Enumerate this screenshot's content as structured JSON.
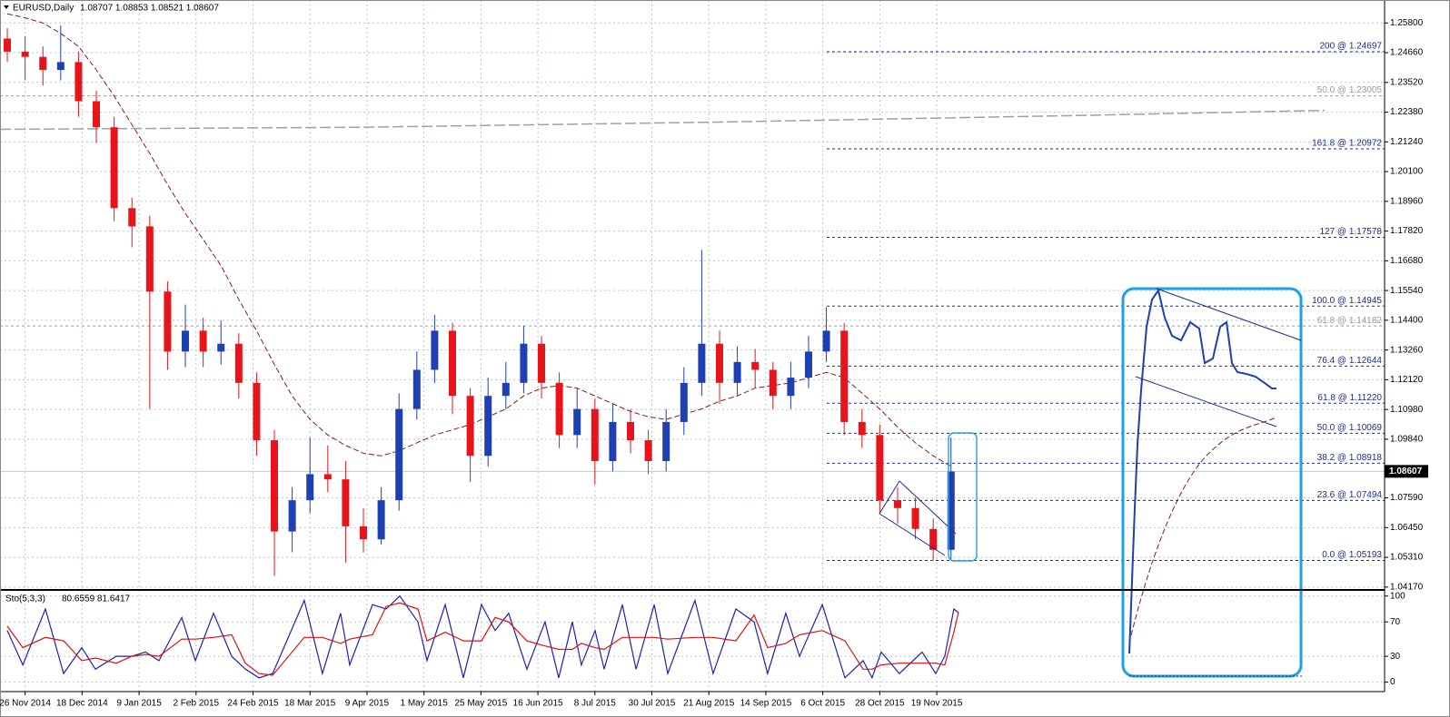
{
  "chart_data": [
    {
      "type": "candlestick",
      "title": "EURUSD,Daily",
      "subtitle": "1.08707 1.08853 1.08521 1.08607",
      "x": [
        0,
        1,
        2,
        3,
        4,
        5,
        6,
        7,
        8,
        9,
        10,
        11,
        12,
        13,
        14,
        15,
        16,
        17,
        18,
        19,
        20,
        21,
        22,
        23,
        24,
        25,
        26,
        27,
        28,
        29,
        30,
        31,
        32,
        33,
        34,
        35,
        36,
        37,
        38,
        39,
        40,
        41,
        42,
        43,
        44,
        45,
        46,
        47,
        48,
        49,
        50,
        51,
        52,
        53
      ],
      "open": [
        1.252,
        1.247,
        1.245,
        1.24,
        1.243,
        1.228,
        1.218,
        1.187,
        1.18,
        1.155,
        1.132,
        1.14,
        1.132,
        1.135,
        1.12,
        1.098,
        1.063,
        1.075,
        1.085,
        1.083,
        1.065,
        1.06,
        1.075,
        1.11,
        1.125,
        1.14,
        1.115,
        1.092,
        1.115,
        1.12,
        1.135,
        1.12,
        1.1,
        1.11,
        1.09,
        1.105,
        1.098,
        1.09,
        1.105,
        1.12,
        1.135,
        1.12,
        1.128,
        1.125,
        1.115,
        1.122,
        1.132,
        1.14,
        1.105,
        1.1,
        1.075,
        1.072,
        1.064,
        1.056
      ],
      "high": [
        1.256,
        1.253,
        1.249,
        1.257,
        1.247,
        1.232,
        1.222,
        1.191,
        1.184,
        1.159,
        1.15,
        1.145,
        1.144,
        1.139,
        1.124,
        1.102,
        1.08,
        1.099,
        1.096,
        1.09,
        1.072,
        1.08,
        1.116,
        1.132,
        1.146,
        1.143,
        1.118,
        1.122,
        1.128,
        1.142,
        1.138,
        1.124,
        1.118,
        1.114,
        1.112,
        1.11,
        1.102,
        1.11,
        1.126,
        1.171,
        1.14,
        1.134,
        1.133,
        1.128,
        1.128,
        1.138,
        1.149,
        1.143,
        1.11,
        1.104,
        1.08,
        1.076,
        1.068,
        1.099
      ],
      "low": [
        1.243,
        1.236,
        1.234,
        1.236,
        1.222,
        1.212,
        1.182,
        1.172,
        1.11,
        1.125,
        1.126,
        1.126,
        1.127,
        1.114,
        1.092,
        1.046,
        1.055,
        1.07,
        1.078,
        1.051,
        1.055,
        1.058,
        1.071,
        1.106,
        1.12,
        1.108,
        1.082,
        1.088,
        1.11,
        1.116,
        1.114,
        1.095,
        1.095,
        1.081,
        1.086,
        1.093,
        1.085,
        1.086,
        1.1,
        1.115,
        1.112,
        1.115,
        1.118,
        1.11,
        1.11,
        1.118,
        1.128,
        1.1,
        1.095,
        1.07,
        1.066,
        1.06,
        1.052,
        1.0524
      ],
      "close": [
        1.247,
        1.245,
        1.24,
        1.243,
        1.228,
        1.218,
        1.187,
        1.18,
        1.155,
        1.132,
        1.14,
        1.132,
        1.135,
        1.12,
        1.098,
        1.063,
        1.075,
        1.085,
        1.083,
        1.065,
        1.06,
        1.075,
        1.11,
        1.125,
        1.14,
        1.115,
        1.092,
        1.115,
        1.12,
        1.135,
        1.12,
        1.1,
        1.11,
        1.09,
        1.105,
        1.098,
        1.09,
        1.105,
        1.12,
        1.135,
        1.12,
        1.128,
        1.125,
        1.115,
        1.122,
        1.132,
        1.14,
        1.105,
        1.1,
        1.075,
        1.072,
        1.064,
        1.056,
        1.086
      ],
      "up_color": "#1f3fb4",
      "down_color": "#e8141b",
      "moving_average": {
        "color": "#8b1a1a",
        "values": [
          1.2615,
          1.26,
          1.258,
          1.254,
          1.249,
          1.24,
          1.23,
          1.219,
          1.208,
          1.196,
          1.185,
          1.175,
          1.165,
          1.152,
          1.14,
          1.127,
          1.115,
          1.106,
          1.1,
          1.096,
          1.093,
          1.092,
          1.094,
          1.097,
          1.1,
          1.102,
          1.104,
          1.107,
          1.11,
          1.115,
          1.118,
          1.119,
          1.118,
          1.115,
          1.112,
          1.109,
          1.107,
          1.106,
          1.108,
          1.11,
          1.113,
          1.115,
          1.118,
          1.119,
          1.12,
          1.122,
          1.124,
          1.122,
          1.116,
          1.11,
          1.103,
          1.097,
          1.092,
          1.088
        ]
      },
      "long_average": {
        "color": "#a0a0a0",
        "x": [
          -0.4,
          20,
          40,
          60,
          74
        ],
        "values": [
          1.2172,
          1.218,
          1.22,
          1.2225,
          1.2245
        ]
      },
      "fib_levels": [
        {
          "value": 1.24697,
          "label": "200 @ 1.24697"
        },
        {
          "value": 1.20972,
          "label": "161.8 @ 1.20972"
        },
        {
          "value": 1.17578,
          "label": "127 @ 1.17578"
        },
        {
          "value": 1.14945,
          "label": "100.0 @ 1.14945"
        },
        {
          "value": 1.12644,
          "label": "76.4 @ 1.12644"
        },
        {
          "value": 1.1122,
          "label": "61.8 @ 1.11220"
        },
        {
          "value": 1.10069,
          "label": "50.0 @ 1.10069"
        },
        {
          "value": 1.08918,
          "label": "38.2 @ 1.08918"
        },
        {
          "value": 1.07494,
          "label": "23.6 @ 1.07494"
        },
        {
          "value": 1.05193,
          "label": "0.0 @ 1.05193"
        }
      ],
      "fib_color": "#1f2a8c",
      "gray_levels": [
        {
          "value": 1.23005,
          "label": "50.0 @ 1.23005"
        },
        {
          "value": 1.14182,
          "label": "61.8 @ 1.14182"
        }
      ],
      "gray_color": "#9a9a9a",
      "last_price": 1.08607,
      "xlim": [
        -0.41,
        77.35
      ],
      "ylim": [
        1.0406,
        1.2668
      ],
      "xticks": [
        {
          "value": 1.0,
          "label": "26 Nov 2014"
        },
        {
          "value": 4.2,
          "label": "18 Dec 2014"
        },
        {
          "value": 7.4,
          "label": "9 Jan 2015"
        },
        {
          "value": 10.6,
          "label": "2 Feb 2015"
        },
        {
          "value": 13.8,
          "label": "24 Feb 2015"
        },
        {
          "value": 17.0,
          "label": "18 Mar 2015"
        },
        {
          "value": 20.2,
          "label": "9 Apr 2015"
        },
        {
          "value": 23.4,
          "label": "1 May 2015"
        },
        {
          "value": 26.6,
          "label": "25 May 2015"
        },
        {
          "value": 29.8,
          "label": "16 Jun 2015"
        },
        {
          "value": 33.0,
          "label": "8 Jul 2015"
        },
        {
          "value": 36.2,
          "label": "30 Jul 2015"
        },
        {
          "value": 39.4,
          "label": "21 Aug 2015"
        },
        {
          "value": 42.6,
          "label": "14 Sep 2015"
        },
        {
          "value": 45.8,
          "label": "6 Oct 2015"
        },
        {
          "value": 49.0,
          "label": "28 Oct 2015"
        },
        {
          "value": 52.2,
          "label": "19 Nov 2015"
        }
      ],
      "yticks": [
        {
          "value": 1.258,
          "label": "1.25800"
        },
        {
          "value": 1.2466,
          "label": "1.24660"
        },
        {
          "value": 1.2352,
          "label": "1.23520"
        },
        {
          "value": 1.2238,
          "label": "1.22380"
        },
        {
          "value": 1.2124,
          "label": "1.21240"
        },
        {
          "value": 1.201,
          "label": "1.20100"
        },
        {
          "value": 1.1896,
          "label": "1.18960"
        },
        {
          "value": 1.1782,
          "label": "1.17820"
        },
        {
          "value": 1.1668,
          "label": "1.16680"
        },
        {
          "value": 1.1554,
          "label": "1.15540"
        },
        {
          "value": 1.144,
          "label": "1.14400"
        },
        {
          "value": 1.1326,
          "label": "1.13260"
        },
        {
          "value": 1.1212,
          "label": "1.12120"
        },
        {
          "value": 1.1098,
          "label": "1.10980"
        },
        {
          "value": 1.0984,
          "label": "1.09840"
        },
        {
          "value": 1.0759,
          "label": "1.07590"
        },
        {
          "value": 1.0645,
          "label": "1.06450"
        },
        {
          "value": 1.0531,
          "label": "1.05310"
        },
        {
          "value": 1.0417,
          "label": "1.04170"
        }
      ],
      "grid": true
    },
    {
      "type": "line",
      "title": "Sto(5,3,3)",
      "subtitle": "80.6559 81.6417",
      "x": [
        0,
        0.87,
        2.14,
        3.16,
        4.18,
        4.95,
        6.12,
        6.99,
        7.76,
        8.52,
        9.8,
        10.56,
        11.58,
        12.6,
        13.37,
        14.13,
        14.9,
        16.68,
        17.7,
        18.72,
        19.23,
        20.51,
        21.28,
        22.04,
        23.06,
        23.57,
        24.59,
        25.61,
        26.63,
        27.4,
        28.16,
        29.18,
        30.2,
        30.97,
        31.73,
        32.24,
        33.01,
        33.52,
        34.54,
        35.31,
        36.33,
        37.09,
        38.62,
        39.64,
        40.92,
        41.94,
        42.7,
        43.72,
        44.49,
        45.77,
        47.04,
        48.06,
        48.57,
        49.08,
        50.1,
        51.38,
        52.14,
        52.65,
        53.16,
        53.42
      ],
      "series": [
        {
          "color": "#1f1fb0",
          "values": [
            60,
            20,
            85,
            10,
            40,
            15,
            30,
            30,
            35,
            25,
            75,
            25,
            80,
            30,
            15,
            5,
            10,
            95,
            10,
            80,
            20,
            90,
            85,
            100,
            70,
            25,
            90,
            5,
            90,
            60,
            80,
            15,
            70,
            5,
            70,
            20,
            60,
            15,
            90,
            15,
            90,
            10,
            95,
            10,
            85,
            70,
            10,
            80,
            30,
            90,
            5,
            25,
            5,
            35,
            10,
            35,
            10,
            30,
            85,
            80.6559
          ]
        },
        {
          "color": "#e01010",
          "values": [
            65,
            40,
            52,
            48,
            25,
            28,
            22,
            30,
            32,
            30,
            50,
            50,
            52,
            55,
            22,
            10,
            8,
            52,
            52,
            45,
            50,
            55,
            88,
            92,
            85,
            48,
            58,
            48,
            48,
            75,
            70,
            48,
            42,
            38,
            38,
            45,
            40,
            38,
            52,
            52,
            52,
            50,
            52,
            52,
            48,
            78,
            40,
            45,
            55,
            60,
            48,
            15,
            15,
            20,
            22,
            22,
            22,
            20,
            58,
            81.6417
          ]
        }
      ],
      "xlim": [
        -0.41,
        77.35
      ],
      "ylim": [
        -11,
        105
      ],
      "yticks": [
        100,
        70,
        30,
        0
      ],
      "grid": true
    }
  ]
}
